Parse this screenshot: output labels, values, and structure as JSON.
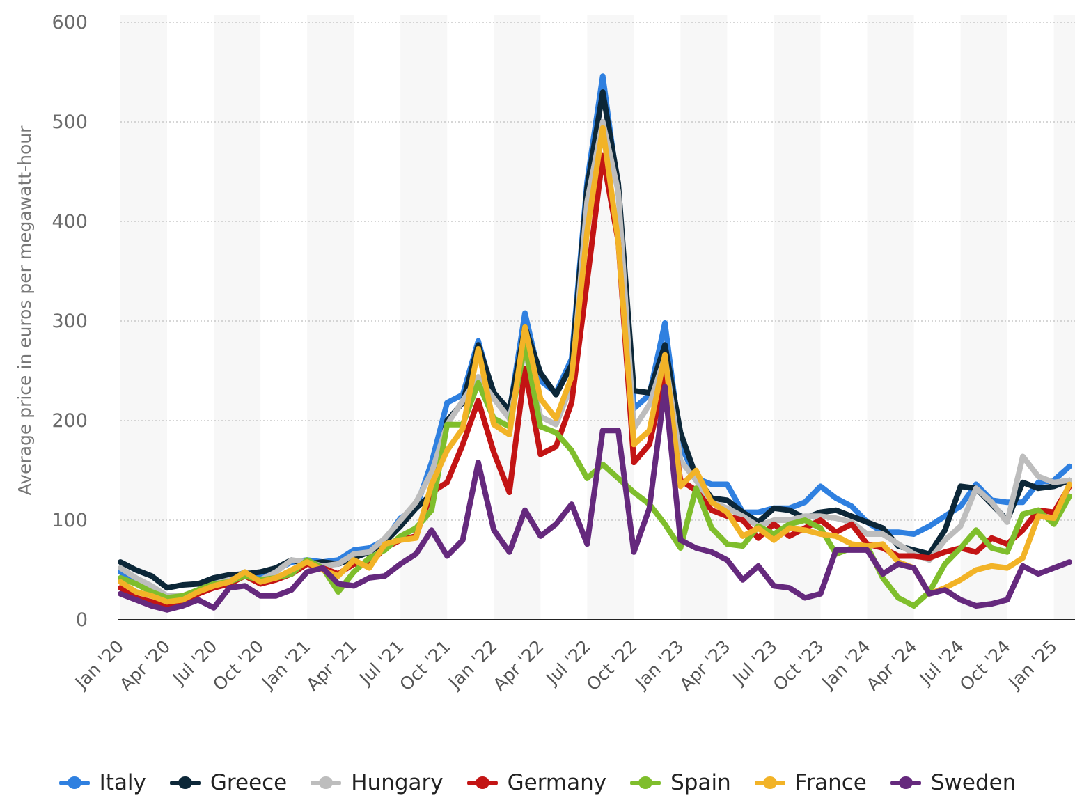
{
  "chart_data": {
    "type": "line",
    "ylabel": "Average price in euros per megawatt-hour",
    "ylim": [
      0,
      600
    ],
    "yticks": [
      "0",
      "100",
      "200",
      "300",
      "400",
      "500",
      "600"
    ],
    "xtick_labels": [
      "Jan '20",
      "Apr '20",
      "Jul '20",
      "Oct '20",
      "Jan '21",
      "Apr '21",
      "Jul '21",
      "Oct '21",
      "Jan '22",
      "Apr '22",
      "Jul '22",
      "Oct '22",
      "Jan '23",
      "Apr '23",
      "Jul '23",
      "Oct '23",
      "Jan '24",
      "Apr '24",
      "Jul '24",
      "Oct '24",
      "Jan '25"
    ],
    "x": [
      "Jan '20",
      "Feb '20",
      "Mar '20",
      "Apr '20",
      "May '20",
      "Jun '20",
      "Jul '20",
      "Aug '20",
      "Sep '20",
      "Oct '20",
      "Nov '20",
      "Dec '20",
      "Jan '21",
      "Feb '21",
      "Mar '21",
      "Apr '21",
      "May '21",
      "Jun '21",
      "Jul '21",
      "Aug '21",
      "Sep '21",
      "Oct '21",
      "Nov '21",
      "Dec '21",
      "Jan '22",
      "Feb '22",
      "Mar '22",
      "Apr '22",
      "May '22",
      "Jun '22",
      "Jul '22",
      "Aug '22",
      "Sep '22",
      "Oct '22",
      "Nov '22",
      "Dec '22",
      "Jan '23",
      "Feb '23",
      "Mar '23",
      "Apr '23",
      "May '23",
      "Jun '23",
      "Jul '23",
      "Aug '23",
      "Sep '23",
      "Oct '23",
      "Nov '23",
      "Dec '23",
      "Jan '24",
      "Feb '24",
      "Mar '24",
      "Apr '24",
      "May '24",
      "Jun '24",
      "Jul '24",
      "Aug '24",
      "Sep '24",
      "Oct '24",
      "Nov '24",
      "Dec '24",
      "Jan '25",
      "Feb '25"
    ],
    "grid": true,
    "legend_position": "bottom",
    "series": [
      {
        "name": "Italy",
        "color": "#2f80e0",
        "values": [
          48,
          40,
          32,
          24,
          22,
          28,
          38,
          40,
          48,
          43,
          50,
          58,
          60,
          58,
          60,
          70,
          72,
          80,
          102,
          112,
          158,
          218,
          226,
          280,
          224,
          208,
          308,
          240,
          228,
          262,
          440,
          546,
          430,
          212,
          226,
          298,
          176,
          142,
          136,
          136,
          108,
          108,
          112,
          112,
          118,
          134,
          122,
          114,
          98,
          88,
          88,
          86,
          94,
          104,
          114,
          136,
          120,
          118,
          118,
          138,
          140,
          154
        ]
      },
      {
        "name": "Greece",
        "color": "#0c2738",
        "values": [
          58,
          50,
          44,
          32,
          35,
          36,
          42,
          45,
          46,
          48,
          52,
          60,
          56,
          58,
          56,
          62,
          68,
          78,
          94,
          112,
          126,
          200,
          218,
          276,
          228,
          210,
          294,
          248,
          226,
          256,
          434,
          530,
          438,
          230,
          228,
          276,
          188,
          144,
          122,
          120,
          108,
          98,
          112,
          110,
          102,
          108,
          110,
          104,
          98,
          92,
          74,
          70,
          66,
          90,
          134,
          132,
          116,
          100,
          138,
          132,
          134,
          140
        ]
      },
      {
        "name": "Hungary",
        "color": "#bdbdbd",
        "values": [
          52,
          42,
          34,
          24,
          24,
          28,
          36,
          40,
          44,
          40,
          48,
          60,
          58,
          54,
          56,
          66,
          68,
          82,
          100,
          118,
          148,
          196,
          220,
          244,
          222,
          202,
          270,
          204,
          196,
          236,
          420,
          500,
          430,
          192,
          216,
          264,
          160,
          140,
          118,
          112,
          104,
          94,
          100,
          100,
          104,
          104,
          102,
          98,
          86,
          86,
          76,
          66,
          60,
          80,
          94,
          132,
          118,
          98,
          164,
          144,
          138,
          140
        ]
      },
      {
        "name": "Germany",
        "color": "#c31414",
        "values": [
          32,
          22,
          18,
          15,
          17,
          26,
          32,
          36,
          44,
          36,
          40,
          46,
          56,
          52,
          46,
          56,
          56,
          72,
          80,
          84,
          128,
          138,
          176,
          220,
          168,
          128,
          252,
          166,
          174,
          218,
          340,
          466,
          380,
          158,
          176,
          246,
          140,
          130,
          110,
          104,
          100,
          82,
          96,
          84,
          92,
          100,
          88,
          96,
          76,
          72,
          64,
          64,
          62,
          68,
          72,
          68,
          82,
          76,
          90,
          110,
          108,
          134
        ]
      },
      {
        "name": "Spain",
        "color": "#7fbe2c",
        "values": [
          42,
          36,
          28,
          22,
          24,
          30,
          36,
          38,
          44,
          40,
          42,
          46,
          60,
          52,
          28,
          48,
          62,
          70,
          84,
          92,
          110,
          196,
          196,
          238,
          202,
          194,
          276,
          194,
          188,
          170,
          142,
          156,
          142,
          128,
          116,
          96,
          72,
          132,
          92,
          76,
          74,
          94,
          86,
          96,
          100,
          92,
          66,
          72,
          74,
          42,
          22,
          14,
          28,
          56,
          72,
          90,
          72,
          68,
          106,
          110,
          96,
          124
        ]
      },
      {
        "name": "France",
        "color": "#f2b327",
        "values": [
          38,
          28,
          24,
          18,
          20,
          28,
          34,
          38,
          48,
          38,
          42,
          50,
          58,
          50,
          44,
          60,
          52,
          76,
          80,
          82,
          136,
          170,
          192,
          272,
          196,
          186,
          294,
          222,
          202,
          244,
          390,
          494,
          380,
          176,
          190,
          266,
          134,
          150,
          118,
          108,
          84,
          92,
          80,
          92,
          90,
          86,
          84,
          76,
          74,
          76,
          58,
          52,
          26,
          32,
          40,
          50,
          54,
          52,
          62,
          104,
          102,
          136
        ]
      },
      {
        "name": "Sweden",
        "color": "#65297d",
        "values": [
          26,
          20,
          14,
          10,
          14,
          20,
          12,
          32,
          34,
          24,
          24,
          30,
          48,
          52,
          36,
          34,
          42,
          44,
          56,
          66,
          90,
          64,
          80,
          158,
          90,
          68,
          110,
          84,
          96,
          116,
          76,
          190,
          190,
          68,
          112,
          234,
          80,
          72,
          68,
          60,
          40,
          54,
          34,
          32,
          22,
          26,
          70,
          70,
          70,
          46,
          56,
          52,
          26,
          30,
          20,
          14,
          16,
          20,
          54,
          46,
          52,
          58
        ]
      }
    ]
  }
}
